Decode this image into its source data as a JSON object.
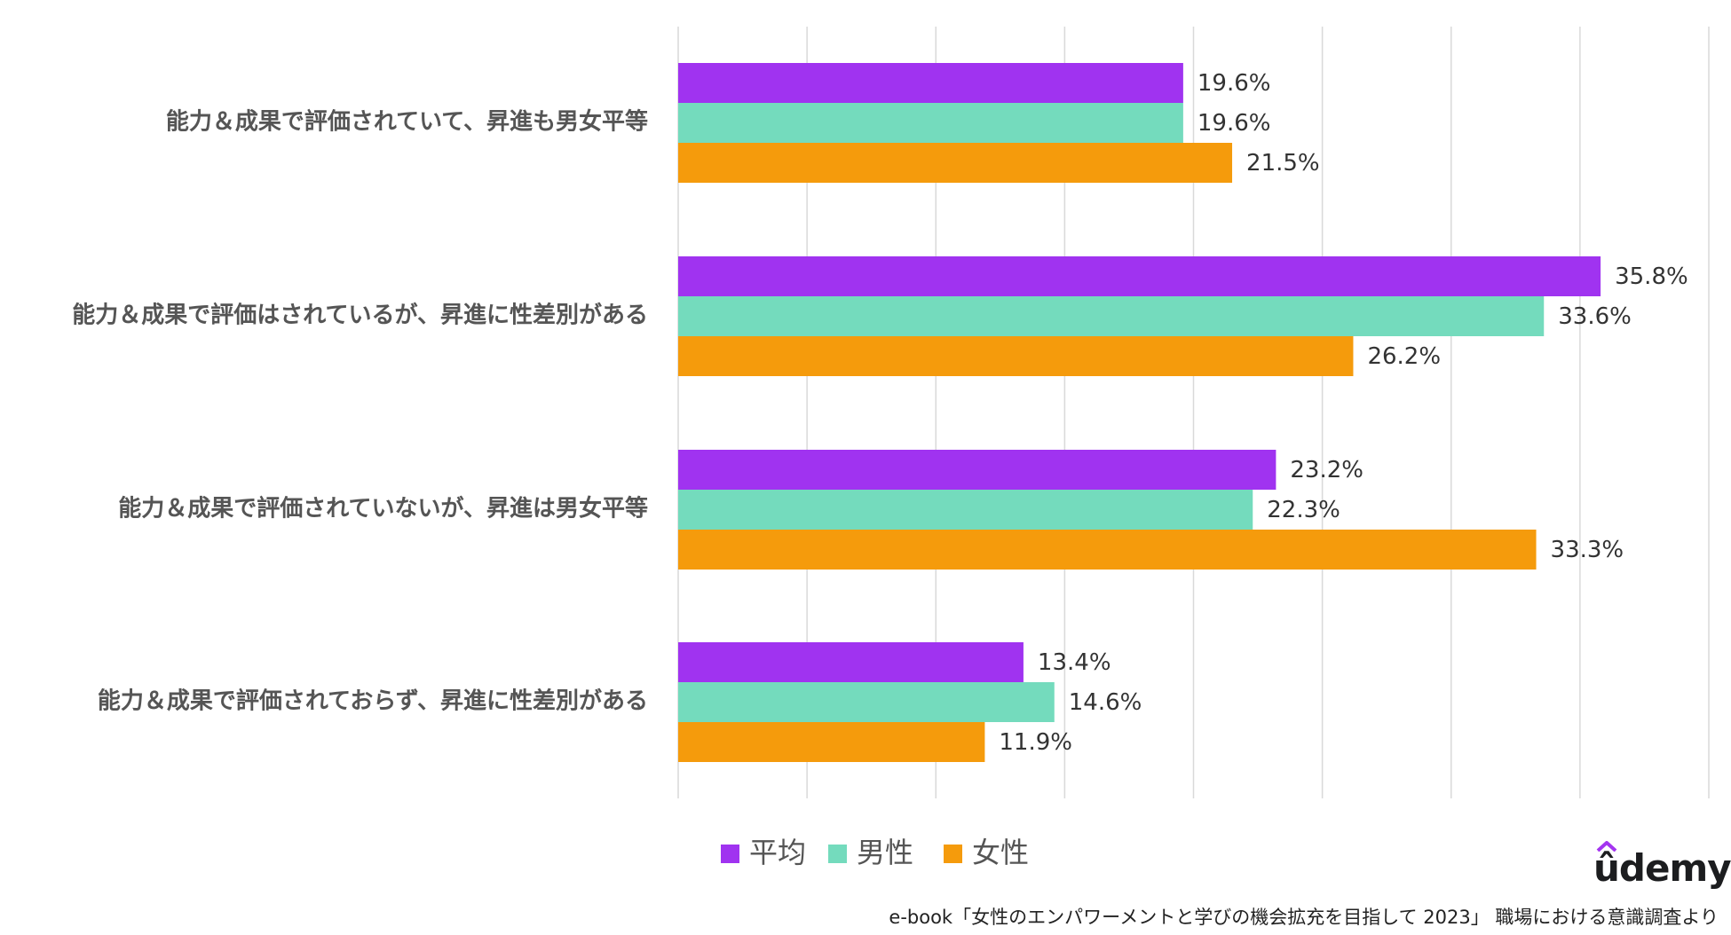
{
  "chart_data": {
    "type": "bar",
    "orientation": "horizontal",
    "categories": [
      "能力＆成果で評価されていて、昇進も男女平等",
      "能力＆成果で評価はされているが、昇進に性差別がある",
      "能力＆成果で評価されていないが、昇進は男女平等",
      "能力＆成果で評価されておらず、昇進に性差別がある"
    ],
    "series": [
      {
        "name": "平均",
        "color": "#a033f0",
        "values": [
          19.6,
          35.8,
          23.2,
          13.4
        ],
        "labels": [
          "19.6%",
          "35.8%",
          "23.2%",
          "13.4%"
        ]
      },
      {
        "name": "男性",
        "color": "#74dbbd",
        "values": [
          19.6,
          33.6,
          22.3,
          14.6
        ],
        "labels": [
          "19.6%",
          "33.6%",
          "22.3%",
          "14.6%"
        ]
      },
      {
        "name": "女性",
        "color": "#f59b0c",
        "values": [
          21.5,
          26.2,
          33.3,
          11.9
        ],
        "labels": [
          "21.5%",
          "26.2%",
          "33.3%",
          "11.9%"
        ]
      }
    ],
    "xlim": [
      0,
      40
    ],
    "grid": true,
    "legend": "bottom",
    "title": "",
    "xlabel": "",
    "ylabel": ""
  },
  "branding": {
    "logo_text": "ûdemy"
  },
  "source_note": "e-book「女性のエンパワーメントと学びの機会拡充を目指して 2023」 職場における意識調査より"
}
